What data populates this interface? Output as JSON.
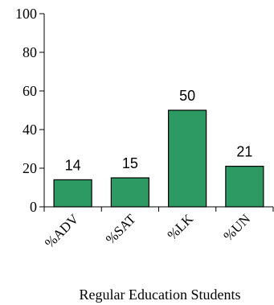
{
  "chart_data": {
    "type": "bar",
    "categories": [
      "%ADV",
      "%SAT",
      "%LK",
      "%UN"
    ],
    "values": [
      14,
      15,
      50,
      21
    ],
    "data_labels": [
      "14",
      "15",
      "50",
      "21"
    ],
    "xlabel": "Regular Education Students",
    "ylabel": "",
    "ylim": [
      0,
      100
    ],
    "yticks": [
      "0",
      "20",
      "40",
      "60",
      "80",
      "100"
    ],
    "grid": false,
    "legend": "none",
    "bar_color": "#2e9a63",
    "bar_edge_color": "#000000"
  }
}
